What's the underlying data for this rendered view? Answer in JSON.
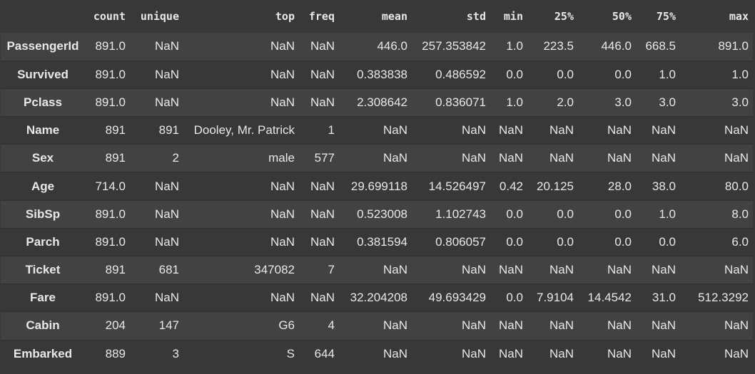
{
  "table": {
    "columns": [
      "count",
      "unique",
      "top",
      "freq",
      "mean",
      "std",
      "min",
      "25%",
      "50%",
      "75%",
      "max"
    ],
    "rows": [
      {
        "index": "PassengerId",
        "cells": [
          "891.0",
          "NaN",
          "NaN",
          "NaN",
          "446.0",
          "257.353842",
          "1.0",
          "223.5",
          "446.0",
          "668.5",
          "891.0"
        ]
      },
      {
        "index": "Survived",
        "cells": [
          "891.0",
          "NaN",
          "NaN",
          "NaN",
          "0.383838",
          "0.486592",
          "0.0",
          "0.0",
          "0.0",
          "1.0",
          "1.0"
        ]
      },
      {
        "index": "Pclass",
        "cells": [
          "891.0",
          "NaN",
          "NaN",
          "NaN",
          "2.308642",
          "0.836071",
          "1.0",
          "2.0",
          "3.0",
          "3.0",
          "3.0"
        ]
      },
      {
        "index": "Name",
        "cells": [
          "891",
          "891",
          "Dooley, Mr. Patrick",
          "1",
          "NaN",
          "NaN",
          "NaN",
          "NaN",
          "NaN",
          "NaN",
          "NaN"
        ]
      },
      {
        "index": "Sex",
        "cells": [
          "891",
          "2",
          "male",
          "577",
          "NaN",
          "NaN",
          "NaN",
          "NaN",
          "NaN",
          "NaN",
          "NaN"
        ]
      },
      {
        "index": "Age",
        "cells": [
          "714.0",
          "NaN",
          "NaN",
          "NaN",
          "29.699118",
          "14.526497",
          "0.42",
          "20.125",
          "28.0",
          "38.0",
          "80.0"
        ]
      },
      {
        "index": "SibSp",
        "cells": [
          "891.0",
          "NaN",
          "NaN",
          "NaN",
          "0.523008",
          "1.102743",
          "0.0",
          "0.0",
          "0.0",
          "1.0",
          "8.0"
        ]
      },
      {
        "index": "Parch",
        "cells": [
          "891.0",
          "NaN",
          "NaN",
          "NaN",
          "0.381594",
          "0.806057",
          "0.0",
          "0.0",
          "0.0",
          "0.0",
          "6.0"
        ]
      },
      {
        "index": "Ticket",
        "cells": [
          "891",
          "681",
          "347082",
          "7",
          "NaN",
          "NaN",
          "NaN",
          "NaN",
          "NaN",
          "NaN",
          "NaN"
        ]
      },
      {
        "index": "Fare",
        "cells": [
          "891.0",
          "NaN",
          "NaN",
          "NaN",
          "32.204208",
          "49.693429",
          "0.0",
          "7.9104",
          "14.4542",
          "31.0",
          "512.3292"
        ]
      },
      {
        "index": "Cabin",
        "cells": [
          "204",
          "147",
          "G6",
          "4",
          "NaN",
          "NaN",
          "NaN",
          "NaN",
          "NaN",
          "NaN",
          "NaN"
        ]
      },
      {
        "index": "Embarked",
        "cells": [
          "889",
          "3",
          "S",
          "644",
          "NaN",
          "NaN",
          "NaN",
          "NaN",
          "NaN",
          "NaN",
          "NaN"
        ]
      }
    ]
  },
  "colors": {
    "background": "#383838",
    "row_stripe": "#424242",
    "text": "#e8e8e8"
  }
}
